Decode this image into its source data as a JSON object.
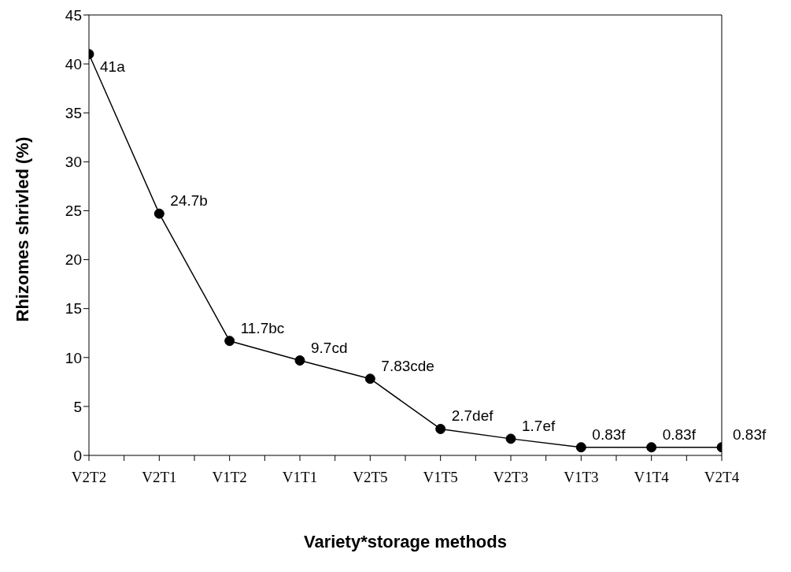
{
  "chart_data": {
    "type": "line",
    "xlabel": "Variety*storage methods",
    "ylabel": "Rhizomes shrivled (%)",
    "categories": [
      "V2T2",
      "V2T1",
      "V1T2",
      "V1T1",
      "V2T5",
      "V1T5",
      "V2T3",
      "V1T3",
      "V1T4",
      "V2T4"
    ],
    "values": [
      41,
      24.7,
      11.7,
      9.7,
      7.83,
      2.7,
      1.7,
      0.83,
      0.83,
      0.83
    ],
    "value_labels": [
      "41a",
      "24.7b",
      "11.7bc",
      "9.7cd",
      "7.83cde",
      "2.7def",
      "1.7ef",
      "0.83f",
      "0.83f",
      "0.83f"
    ],
    "color": "#000000",
    "marker": "circle",
    "line_style": "solid",
    "ylim": [
      0,
      45
    ],
    "yticks": [
      0,
      5,
      10,
      15,
      20,
      25,
      30,
      35,
      40,
      45
    ],
    "grid": false,
    "legend": false
  }
}
